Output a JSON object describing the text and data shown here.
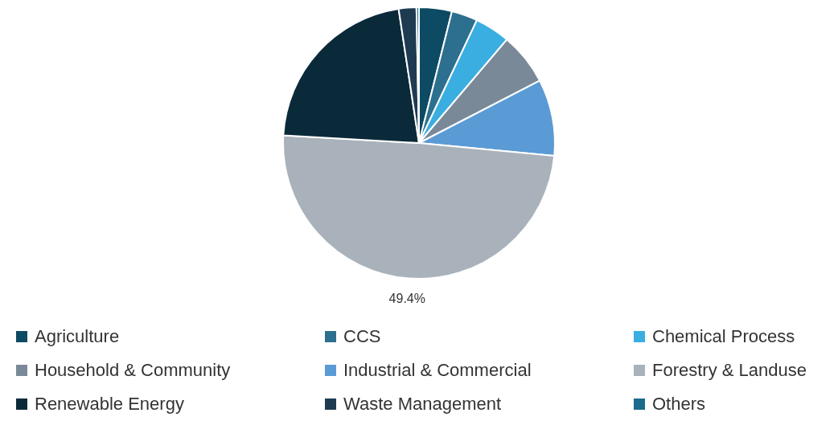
{
  "chart_data": {
    "type": "pie",
    "categories": [
      "Agriculture",
      "CCS",
      "Chemical Process",
      "Household & Community",
      "Industrial & Commercial",
      "Forestry & Landuse",
      "Renewable Energy",
      "Waste Management",
      "Others"
    ],
    "values": [
      3.9,
      3.1,
      4.2,
      6.2,
      9.1,
      49.4,
      21.7,
      2.1,
      0.3
    ],
    "colors": [
      "#0d4a63",
      "#2d6f8e",
      "#3aaee0",
      "#7a8998",
      "#5b9bd5",
      "#a9b2ba",
      "#0a2a3a",
      "#1f3b52",
      "#1a6b8c"
    ],
    "value_labels": [
      null,
      null,
      null,
      null,
      null,
      "49.4%",
      null,
      null,
      null
    ],
    "legend": "bottom"
  }
}
